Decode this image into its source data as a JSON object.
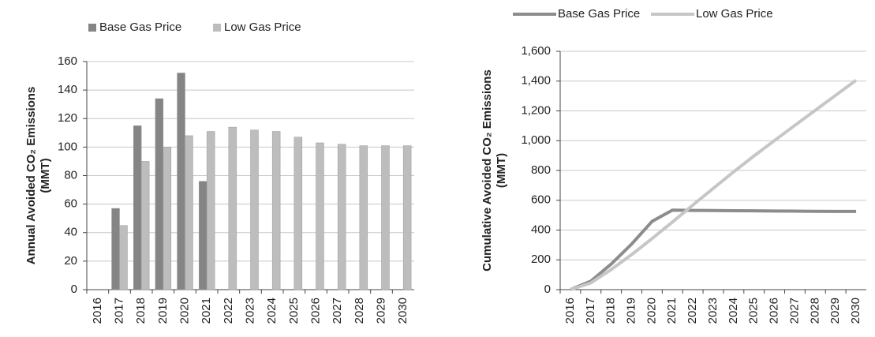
{
  "chart_data": [
    {
      "type": "bar",
      "ylabel": [
        "Annual Avoided CO₂ Emissions",
        "(MMT)"
      ],
      "categories": [
        "2016",
        "2017",
        "2018",
        "2019",
        "2020",
        "2021",
        "2022",
        "2023",
        "2024",
        "2025",
        "2026",
        "2027",
        "2028",
        "2029",
        "2030"
      ],
      "series": [
        {
          "name": "Base Gas Price",
          "color": "#858585",
          "values": [
            0,
            57,
            115,
            134,
            152,
            76,
            null,
            null,
            null,
            null,
            null,
            null,
            null,
            null,
            null
          ]
        },
        {
          "name": "Low Gas Price",
          "color": "#bdbdbd",
          "values": [
            0,
            45,
            90,
            100,
            108,
            111,
            114,
            112,
            111,
            107,
            103,
            102,
            101,
            101,
            101
          ]
        }
      ],
      "ylim": [
        0,
        160
      ],
      "yticks": [
        0,
        20,
        40,
        60,
        80,
        100,
        120,
        140,
        160
      ],
      "grid": true,
      "legend": "top"
    },
    {
      "type": "line",
      "ylabel": [
        "Cumulative Avoided CO₂ Emissions",
        "(MMT)"
      ],
      "categories": [
        "2016",
        "2017",
        "2018",
        "2019",
        "2020",
        "2021",
        "2022",
        "2023",
        "2024",
        "2025",
        "2026",
        "2027",
        "2028",
        "2029",
        "2030"
      ],
      "series": [
        {
          "name": "Base Gas Price",
          "color": "#8c8c8c",
          "values": [
            0,
            57,
            172,
            306,
            458,
            534,
            532,
            531,
            530,
            529,
            528,
            527,
            526,
            525,
            525
          ]
        },
        {
          "name": "Low Gas Price",
          "color": "#c6c6c6",
          "values": [
            0,
            45,
            135,
            235,
            343,
            454,
            568,
            680,
            791,
            898,
            1001,
            1103,
            1204,
            1305,
            1406
          ]
        }
      ],
      "ylim": [
        0,
        1600
      ],
      "yticks": [
        0,
        200,
        400,
        600,
        800,
        {
          "value": 1000,
          "label": "1,000"
        },
        {
          "value": 1200,
          "label": "1,200"
        },
        {
          "value": 1400,
          "label": "1,400"
        },
        {
          "value": 1600,
          "label": "1,600"
        }
      ],
      "grid": true,
      "legend": "top"
    }
  ]
}
